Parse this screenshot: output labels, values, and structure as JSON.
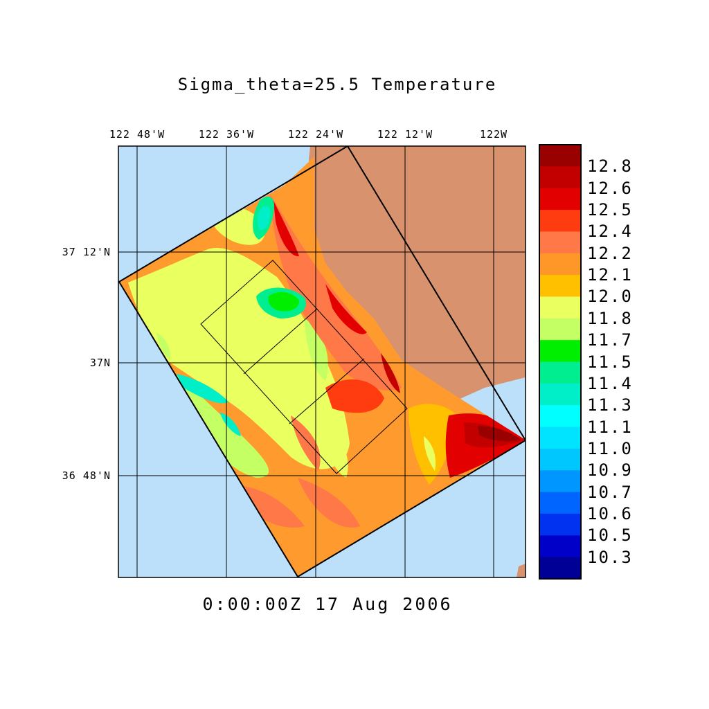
{
  "title": "Sigma_theta=25.5 Temperature",
  "timestamp": "0:00:00Z  17 Aug 2006",
  "longitude_labels": [
    "122 48'W",
    "122 36'W",
    "122 24'W",
    "122 12'W",
    "122W"
  ],
  "latitude_labels": [
    "37 12'N",
    "37N",
    "36 48'N"
  ],
  "colorbar": {
    "labels": [
      "12.8",
      "12.6",
      "12.5",
      "12.4",
      "12.2",
      "12.1",
      "12.0",
      "11.8",
      "11.7",
      "11.5",
      "11.4",
      "11.3",
      "11.1",
      "11.0",
      "10.9",
      "10.7",
      "10.6",
      "10.5",
      "10.3"
    ],
    "colors": [
      "#990000",
      "#c20000",
      "#e30000",
      "#ff3c10",
      "#ff7848",
      "#ff9628",
      "#ffc000",
      "#eaff60",
      "#c4ff64",
      "#00ee00",
      "#00ee90",
      "#00eec8",
      "#00ffff",
      "#00e4ff",
      "#00c8ff",
      "#0096ff",
      "#0064ff",
      "#0032f0",
      "#0000c8"
    ]
  },
  "map_colors": {
    "ocean": "#bde0fa",
    "land": "#d8926e",
    "domain_base": "#ff9a2e"
  }
}
